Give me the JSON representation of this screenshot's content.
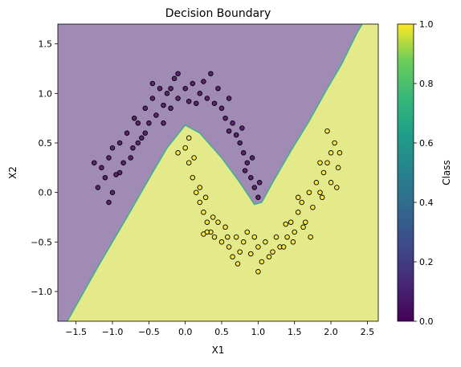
{
  "chart_data": {
    "type": "scatter",
    "title": "Decision Boundary",
    "xlabel": "X1",
    "ylabel": "X2",
    "xlim": [
      -1.75,
      2.65
    ],
    "ylim": [
      -1.3,
      1.7
    ],
    "xticks": [
      -1.5,
      -1.0,
      -0.5,
      0.0,
      0.5,
      1.0,
      1.5,
      2.0,
      2.5
    ],
    "yticks": [
      -1.0,
      -0.5,
      0.0,
      0.5,
      1.0,
      1.5
    ],
    "grid": false,
    "colors": {
      "class0_region": "#a08bb5",
      "class1_region": "#e4ea8a",
      "class0_point": "#440154",
      "class1_point": "#fde725",
      "boundary": "#3bb28a"
    },
    "decision_boundary": {
      "x": [
        -1.62,
        -1.2,
        -0.8,
        -0.45,
        -0.25,
        0.0,
        0.2,
        0.5,
        0.75,
        0.95,
        1.05,
        1.2,
        1.45,
        1.7,
        1.95,
        2.15,
        2.35,
        2.43
      ],
      "y": [
        -1.3,
        -0.75,
        -0.25,
        0.2,
        0.45,
        0.68,
        0.6,
        0.35,
        0.1,
        -0.12,
        -0.1,
        0.1,
        0.42,
        0.72,
        1.05,
        1.3,
        1.6,
        1.7
      ]
    },
    "series": [
      {
        "values": [
          [
            -1.0,
            0.0
          ],
          [
            -0.95,
            0.18
          ],
          [
            -1.05,
            0.35
          ],
          [
            -0.9,
            0.5
          ],
          [
            -0.85,
            0.3
          ],
          [
            -0.8,
            0.6
          ],
          [
            -0.72,
            0.45
          ],
          [
            -0.65,
            0.7
          ],
          [
            -0.6,
            0.55
          ],
          [
            -0.55,
            0.85
          ],
          [
            -0.5,
            0.7
          ],
          [
            -0.45,
            0.95
          ],
          [
            -0.4,
            0.78
          ],
          [
            -0.35,
            1.05
          ],
          [
            -0.3,
            0.88
          ],
          [
            -0.25,
            1.0
          ],
          [
            -0.2,
            0.85
          ],
          [
            -0.15,
            1.15
          ],
          [
            -0.1,
            0.95
          ],
          [
            0.0,
            1.05
          ],
          [
            0.05,
            0.92
          ],
          [
            0.1,
            1.1
          ],
          [
            0.2,
            1.0
          ],
          [
            0.3,
            0.95
          ],
          [
            0.35,
            1.2
          ],
          [
            0.4,
            0.9
          ],
          [
            0.5,
            0.85
          ],
          [
            0.55,
            0.75
          ],
          [
            0.6,
            0.95
          ],
          [
            0.65,
            0.7
          ],
          [
            0.7,
            0.58
          ],
          [
            0.75,
            0.5
          ],
          [
            0.8,
            0.4
          ],
          [
            0.85,
            0.3
          ],
          [
            0.9,
            0.15
          ],
          [
            0.95,
            0.05
          ],
          [
            1.0,
            -0.05
          ],
          [
            -1.1,
            0.15
          ],
          [
            -1.2,
            0.05
          ],
          [
            -1.15,
            0.25
          ],
          [
            -1.05,
            -0.1
          ],
          [
            -1.0,
            0.45
          ],
          [
            -0.9,
            0.2
          ],
          [
            -0.75,
            0.35
          ],
          [
            -0.7,
            0.75
          ],
          [
            -0.55,
            0.6
          ],
          [
            -0.45,
            1.1
          ],
          [
            -0.2,
            1.05
          ],
          [
            0.15,
            0.9
          ],
          [
            0.45,
            1.05
          ],
          [
            0.6,
            0.62
          ],
          [
            0.78,
            0.65
          ],
          [
            0.82,
            0.22
          ],
          [
            0.92,
            0.35
          ],
          [
            1.02,
            0.1
          ],
          [
            -0.3,
            0.7
          ],
          [
            -0.65,
            0.5
          ],
          [
            -1.25,
            0.3
          ],
          [
            -0.1,
            1.2
          ],
          [
            0.25,
            1.12
          ]
        ]
      },
      {
        "values": [
          [
            0.0,
            0.45
          ],
          [
            0.05,
            0.3
          ],
          [
            0.1,
            0.15
          ],
          [
            0.15,
            0.0
          ],
          [
            0.2,
            -0.1
          ],
          [
            0.25,
            -0.2
          ],
          [
            0.3,
            -0.3
          ],
          [
            0.35,
            -0.4
          ],
          [
            0.4,
            -0.45
          ],
          [
            0.5,
            -0.5
          ],
          [
            0.55,
            -0.35
          ],
          [
            0.6,
            -0.55
          ],
          [
            0.65,
            -0.65
          ],
          [
            0.7,
            -0.45
          ],
          [
            0.75,
            -0.6
          ],
          [
            0.8,
            -0.5
          ],
          [
            0.9,
            -0.62
          ],
          [
            1.0,
            -0.55
          ],
          [
            1.05,
            -0.7
          ],
          [
            1.1,
            -0.5
          ],
          [
            1.2,
            -0.6
          ],
          [
            1.3,
            -0.55
          ],
          [
            1.4,
            -0.45
          ],
          [
            1.45,
            -0.3
          ],
          [
            1.5,
            -0.4
          ],
          [
            1.55,
            -0.2
          ],
          [
            1.6,
            -0.1
          ],
          [
            1.65,
            -0.3
          ],
          [
            1.7,
            0.0
          ],
          [
            1.75,
            -0.15
          ],
          [
            1.8,
            0.1
          ],
          [
            1.85,
            0.0
          ],
          [
            1.9,
            0.2
          ],
          [
            1.95,
            0.3
          ],
          [
            2.0,
            0.4
          ],
          [
            2.05,
            0.5
          ],
          [
            2.1,
            0.25
          ],
          [
            1.95,
            0.62
          ],
          [
            2.0,
            0.1
          ],
          [
            -0.1,
            0.4
          ],
          [
            0.05,
            0.55
          ],
          [
            0.12,
            0.35
          ],
          [
            0.2,
            0.05
          ],
          [
            0.28,
            -0.05
          ],
          [
            0.38,
            -0.25
          ],
          [
            0.45,
            -0.3
          ],
          [
            0.58,
            -0.45
          ],
          [
            0.72,
            -0.72
          ],
          [
            0.85,
            -0.4
          ],
          [
            0.95,
            -0.45
          ],
          [
            1.0,
            -0.8
          ],
          [
            1.15,
            -0.65
          ],
          [
            1.25,
            -0.45
          ],
          [
            1.35,
            -0.55
          ],
          [
            1.48,
            -0.5
          ],
          [
            1.62,
            -0.35
          ],
          [
            1.72,
            -0.45
          ],
          [
            1.85,
            0.3
          ],
          [
            2.08,
            0.05
          ],
          [
            2.12,
            0.4
          ],
          [
            0.3,
            -0.4
          ],
          [
            0.25,
            -0.42
          ],
          [
            1.38,
            -0.32
          ],
          [
            1.55,
            -0.05
          ],
          [
            1.88,
            -0.05
          ]
        ]
      }
    ],
    "colorbar": {
      "label": "Class",
      "ticks": [
        "0.0",
        "0.2",
        "0.4",
        "0.6",
        "0.8",
        "1.0"
      ]
    }
  }
}
